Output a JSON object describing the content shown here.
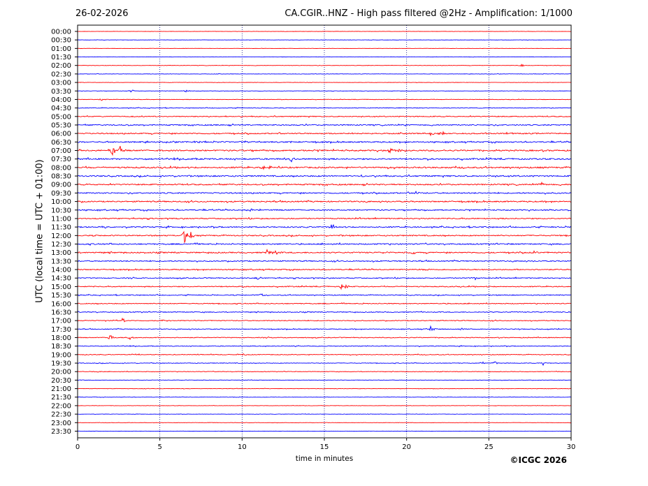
{
  "header": {
    "date": "26-02-2026",
    "title": "CA.CGIR..HNZ - High pass filtered @2Hz - Amplification: 1/1000"
  },
  "footer": {
    "copyright": "©ICGC 2026"
  },
  "chart_data": {
    "type": "line",
    "xlabel": "time in minutes",
    "ylabel": "UTC (local time = UTC + 01:00)",
    "xlim": [
      0,
      30
    ],
    "x_ticks": [
      "0",
      "5",
      "10",
      "15",
      "20",
      "25",
      "30"
    ],
    "grid": "vertical dotted at 5-minute intervals",
    "colors": {
      "trace_a": "#ff0000",
      "trace_b": "#0000ff",
      "grid": "#000080",
      "frame": "#000000"
    },
    "rows": [
      "00:00",
      "00:30",
      "01:00",
      "01:30",
      "02:00",
      "02:30",
      "03:00",
      "03:30",
      "04:00",
      "04:30",
      "05:00",
      "05:30",
      "06:00",
      "06:30",
      "07:00",
      "07:30",
      "08:00",
      "08:30",
      "09:00",
      "09:30",
      "10:00",
      "10:30",
      "11:00",
      "11:30",
      "12:00",
      "12:30",
      "13:00",
      "13:30",
      "14:00",
      "14:30",
      "15:00",
      "15:30",
      "16:00",
      "16:30",
      "17:00",
      "17:30",
      "18:00",
      "18:30",
      "19:00",
      "19:30",
      "20:00",
      "20:30",
      "21:00",
      "21:30",
      "22:00",
      "22:30",
      "23:00",
      "23:30"
    ],
    "row_noise": [
      0.3,
      0.4,
      0.3,
      0.3,
      0.5,
      0.5,
      0.4,
      0.5,
      0.6,
      0.8,
      1.2,
      1.4,
      1.5,
      1.6,
      1.8,
      1.8,
      1.8,
      1.7,
      1.6,
      1.6,
      1.6,
      1.5,
      1.4,
      1.5,
      1.5,
      1.6,
      1.6,
      1.4,
      1.3,
      1.2,
      1.2,
      1.1,
      1.1,
      1.1,
      1.0,
      1.0,
      1.0,
      0.9,
      0.9,
      0.8,
      0.7,
      0.6,
      0.5,
      0.5,
      0.4,
      0.4,
      0.4,
      0.3
    ],
    "events": [
      {
        "row": "02:00",
        "minute": 27.0,
        "amplitude": 2
      },
      {
        "row": "03:30",
        "minute": 3.3,
        "amplitude": 3
      },
      {
        "row": "03:30",
        "minute": 6.6,
        "amplitude": 2
      },
      {
        "row": "04:00",
        "minute": 1.5,
        "amplitude": 3
      },
      {
        "row": "06:00",
        "minute": 22.1,
        "amplitude": 6
      },
      {
        "row": "06:00",
        "minute": 21.5,
        "amplitude": 3
      },
      {
        "row": "06:30",
        "minute": 7.2,
        "amplitude": 3
      },
      {
        "row": "06:30",
        "minute": 13.0,
        "amplitude": 3
      },
      {
        "row": "07:00",
        "minute": 2.1,
        "amplitude": 11
      },
      {
        "row": "07:00",
        "minute": 2.6,
        "amplitude": 8
      },
      {
        "row": "07:00",
        "minute": 19.0,
        "amplitude": 4
      },
      {
        "row": "07:00",
        "minute": 19.6,
        "amplitude": 5
      },
      {
        "row": "07:30",
        "minute": 13.0,
        "amplitude": 7
      },
      {
        "row": "08:00",
        "minute": 11.3,
        "amplitude": 3
      },
      {
        "row": "08:30",
        "minute": 17.3,
        "amplitude": 3
      },
      {
        "row": "09:00",
        "minute": 28.2,
        "amplitude": 3
      },
      {
        "row": "09:30",
        "minute": 20.6,
        "amplitude": 3
      },
      {
        "row": "10:30",
        "minute": 10.5,
        "amplitude": 3
      },
      {
        "row": "11:30",
        "minute": 1.7,
        "amplitude": 4
      },
      {
        "row": "11:30",
        "minute": 15.5,
        "amplitude": 4
      },
      {
        "row": "12:00",
        "minute": 6.5,
        "amplitude": 10
      },
      {
        "row": "12:00",
        "minute": 6.9,
        "amplitude": 7
      },
      {
        "row": "13:00",
        "minute": 11.5,
        "amplitude": 5
      },
      {
        "row": "13:00",
        "minute": 12.0,
        "amplitude": 6
      },
      {
        "row": "13:00",
        "minute": 20.4,
        "amplitude": 3
      },
      {
        "row": "13:00",
        "minute": 27.8,
        "amplitude": 3
      },
      {
        "row": "14:30",
        "minute": 11.0,
        "amplitude": 3
      },
      {
        "row": "14:30",
        "minute": 24.2,
        "amplitude": 3
      },
      {
        "row": "15:00",
        "minute": 16.0,
        "amplitude": 5
      },
      {
        "row": "15:00",
        "minute": 16.3,
        "amplitude": 5
      },
      {
        "row": "15:30",
        "minute": 11.1,
        "amplitude": 3
      },
      {
        "row": "17:00",
        "minute": 2.8,
        "amplitude": 6
      },
      {
        "row": "17:00",
        "minute": 5.1,
        "amplitude": 2
      },
      {
        "row": "17:30",
        "minute": 21.5,
        "amplitude": 7
      },
      {
        "row": "17:30",
        "minute": 23.4,
        "amplitude": 3
      },
      {
        "row": "18:00",
        "minute": 2.0,
        "amplitude": 5
      },
      {
        "row": "18:00",
        "minute": 3.2,
        "amplitude": 4
      },
      {
        "row": "19:00",
        "minute": 10.1,
        "amplitude": 2
      },
      {
        "row": "19:30",
        "minute": 24.6,
        "amplitude": 2
      },
      {
        "row": "19:30",
        "minute": 25.4,
        "amplitude": 3
      },
      {
        "row": "19:30",
        "minute": 28.3,
        "amplitude": 3
      },
      {
        "row": "20:00",
        "minute": 1.2,
        "amplitude": 2
      }
    ]
  }
}
